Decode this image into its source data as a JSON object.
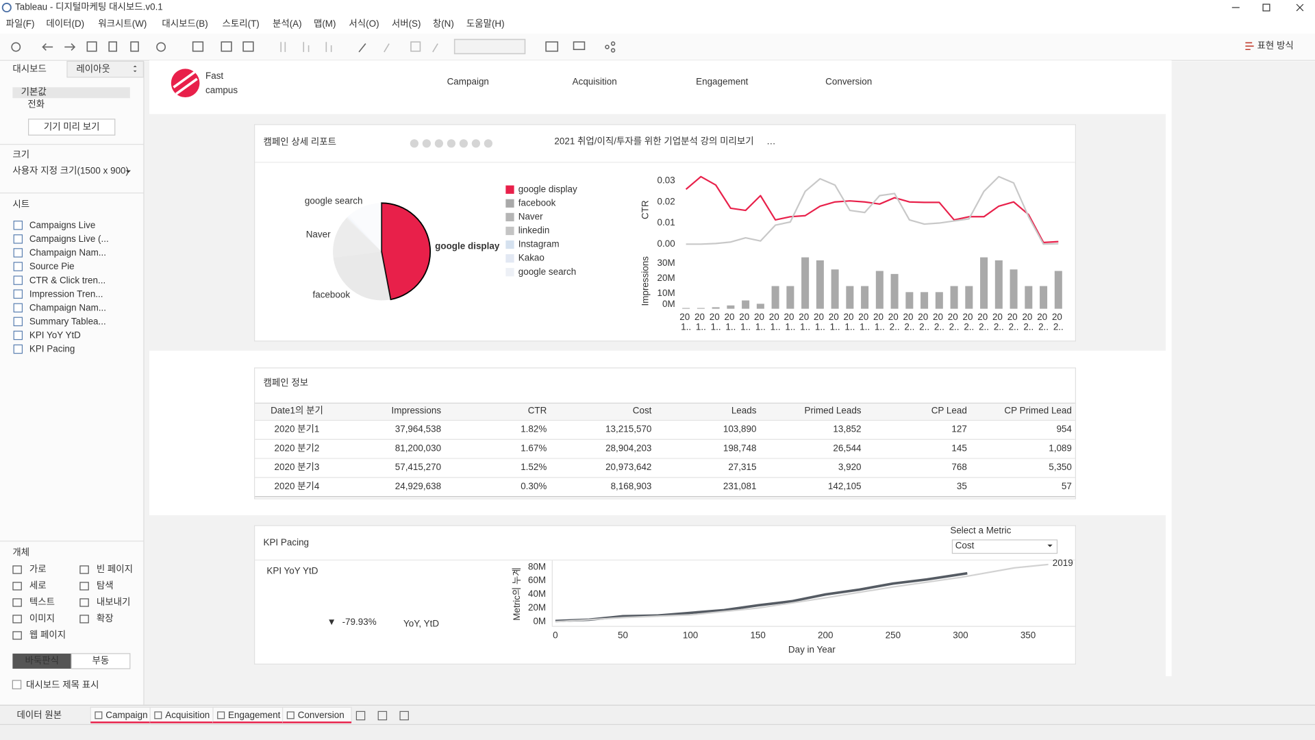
{
  "window": {
    "title": "Tableau - 디지털마케팅 대시보드.v0.1"
  },
  "menu": [
    "파일(F)",
    "데이터(D)",
    "워크시트(W)",
    "대시보드(B)",
    "스토리(T)",
    "분석(A)",
    "맵(M)",
    "서식(O)",
    "서버(S)",
    "창(N)",
    "도움말(H)"
  ],
  "toolbar": {
    "show_me": "표현 방식"
  },
  "left_panel": {
    "tabs": [
      "대시보드",
      "레이아웃"
    ],
    "devices": [
      "기본값",
      "전화"
    ],
    "device_preview": "기기 미리 보기",
    "size_label": "크기",
    "size_value": "사용자 지정 크기(1500 x 900)",
    "sheets_label": "시트",
    "sheets": [
      "Campaigns Live",
      "Campaigns Live (...",
      "Champaign Nam...",
      "Source Pie",
      "CTR & Click tren...",
      "Impression Tren...",
      "Champaign Nam...",
      "Summary Tablea...",
      "KPI YoY YtD",
      "KPI Pacing"
    ],
    "objects_label": "개체",
    "objects": [
      "가로",
      "빈 페이지",
      "세로",
      "탐색",
      "텍스트",
      "내보내기",
      "이미지",
      "확장",
      "웹 페이지"
    ],
    "layout_modes": [
      "바둑판식",
      "부동"
    ],
    "show_title": "대시보드 제목 표시"
  },
  "dashboard": {
    "logo": [
      "Fast",
      "campus"
    ],
    "nav": [
      "Campaign",
      "Acquisition",
      "Engagement",
      "Conversion"
    ],
    "report": {
      "title": "캠페인 상세 리포트",
      "subtitle": "2021 취업/이직/투자를 위한 기업분석 강의 미리보기",
      "more": "…",
      "pie": {
        "type": "pie",
        "categories": [
          "google display",
          "facebook",
          "Naver",
          "linkedin",
          "Instagram",
          "Kakao",
          "google search"
        ],
        "values": [
          47,
          26,
          14,
          0.5,
          0.5,
          0.5,
          11.5
        ],
        "colors": [
          "#e8204a",
          "#a9a9a9",
          "#b5b5b5",
          "#c4c4c4",
          "#d5e1ef",
          "#e2e8f3",
          "#edf0f6"
        ],
        "highlight": "google display"
      },
      "ctr": {
        "type": "line",
        "ylabel": "CTR",
        "ylim": [
          0,
          0.033
        ],
        "yticks": [
          {
            "value": 0,
            "label": "0.00"
          },
          0.01,
          0.02,
          0.03
        ],
        "series": [
          {
            "color": "#e8204a",
            "values": [
              0.026,
              0.032,
              0.028,
              0.017,
              0.016,
              0.023,
              0.0115,
              0.013,
              0.0135,
              0.018,
              0.02,
              0.0205,
              0.02,
              0.019,
              0.022,
              0.02,
              0.0198,
              0.0198,
              0.0115,
              0.013,
              0.013,
              0.018,
              0.02,
              0.014,
              0.0008,
              0.0012
            ]
          },
          {
            "color": "#c8c8c8",
            "values": [
              0,
              0,
              0.0003,
              0.001,
              0.003,
              0.0015,
              0.009,
              0.0105,
              0.025,
              0.031,
              0.028,
              0.016,
              0.015,
              0.023,
              0.024,
              0.0115,
              0.0095,
              0.01,
              0.011,
              0.012,
              0.025,
              0.032,
              0.029,
              0.013,
              0,
              0.0002
            ]
          }
        ]
      },
      "impressions": {
        "type": "bar",
        "ylabel": "Impressions",
        "color": "#a9a9a9",
        "ylim": [
          0,
          34.4
        ],
        "yticks": [
          {
            "value": 0,
            "label": "0M"
          },
          {
            "value": 10,
            "label": "10M"
          },
          {
            "value": 20,
            "label": "20M"
          },
          {
            "value": 30,
            "label": "30M"
          }
        ],
        "categories": [
          "20 1..",
          "20 1..",
          "20 1..",
          "20 1..",
          "20 1..",
          "20 1..",
          "20 1..",
          "20 1..",
          "20 1..",
          "20 1..",
          "20 1..",
          "20 1..",
          "20 1..",
          "20 1..",
          "20 2..",
          "20 2..",
          "20 2..",
          "20 2..",
          "20 2..",
          "20 2..",
          "20 2..",
          "20 2..",
          "20 2..",
          "20 2..",
          "20 2..",
          "20 2.."
        ],
        "values": [
          0.5,
          0.5,
          1,
          2.2,
          5.5,
          3.3,
          15,
          15,
          34,
          32,
          26,
          15,
          15,
          25,
          23,
          11,
          11,
          11,
          15,
          15,
          34,
          32,
          26,
          15,
          15,
          25
        ]
      }
    },
    "table": {
      "title": "캠페인 정보",
      "columns": [
        "Date1의 분기",
        "Impressions",
        "CTR",
        "Cost",
        "Leads",
        "Primed Leads",
        "CP Lead",
        "CP Primed Lead"
      ],
      "rows": [
        [
          "2020 분기1",
          "37,964,538",
          "1.82%",
          "13,215,570",
          "103,890",
          "13,852",
          "127",
          "954"
        ],
        [
          "2020 분기2",
          "81,200,030",
          "1.67%",
          "28,904,203",
          "198,748",
          "26,544",
          "145",
          "1,089"
        ],
        [
          "2020 분기3",
          "57,415,270",
          "1.52%",
          "20,973,642",
          "27,315",
          "3,920",
          "768",
          "5,350"
        ],
        [
          "2020 분기4",
          "24,929,638",
          "0.30%",
          "8,168,903",
          "231,081",
          "142,105",
          "35",
          "57"
        ]
      ]
    },
    "kpi": {
      "title": "KPI Pacing",
      "metric_label": "Select a Metric",
      "metric": "Cost",
      "yoy": {
        "title": "KPI YoY YtD",
        "arrow": "▼",
        "value": "-79.93%",
        "note": "YoY, YtD"
      },
      "chart": {
        "type": "line",
        "xlabel": "Day in Year",
        "ylabel": "Metric의 누계",
        "xlim": [
          -2,
          383
        ],
        "xticks": [
          0,
          50,
          100,
          150,
          200,
          250,
          300,
          350
        ],
        "ylim": [
          0,
          87.4
        ],
        "yticks": [
          {
            "value": 0,
            "label": "0M"
          },
          {
            "value": 20,
            "label": "20M"
          },
          {
            "value": 40,
            "label": "40M"
          },
          {
            "value": 60,
            "label": "60M"
          },
          {
            "value": 80,
            "label": "80M"
          }
        ],
        "series": [
          {
            "color": "#555b63",
            "x": [
              0,
              25,
              50,
              75,
              100,
              125,
              150,
              175,
              200,
              225,
              250,
              275,
              305
            ],
            "values": [
              1,
              3,
              8,
              9,
              13,
              17,
              24,
              30,
              40,
              47,
              56,
              62,
              71
            ]
          },
          {
            "name": "2019",
            "color": "#d2d2d2",
            "x": [
              0,
              50,
              100,
              150,
              200,
              250,
              300,
              340,
              365
            ],
            "values": [
              0,
              6,
              10,
              20,
              35,
              51,
              65,
              79,
              84
            ]
          }
        ]
      }
    }
  },
  "bottom_tabs": {
    "source": "데이터 원본",
    "sheets": [
      "Campaign",
      "Acquisition",
      "Engagement",
      "Conversion"
    ]
  }
}
